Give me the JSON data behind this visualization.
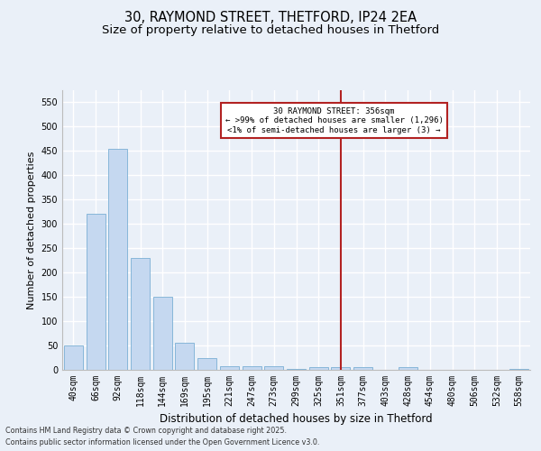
{
  "title1": "30, RAYMOND STREET, THETFORD, IP24 2EA",
  "title2": "Size of property relative to detached houses in Thetford",
  "xlabel": "Distribution of detached houses by size in Thetford",
  "ylabel": "Number of detached properties",
  "categories": [
    "40sqm",
    "66sqm",
    "92sqm",
    "118sqm",
    "144sqm",
    "169sqm",
    "195sqm",
    "221sqm",
    "247sqm",
    "273sqm",
    "299sqm",
    "325sqm",
    "351sqm",
    "377sqm",
    "403sqm",
    "428sqm",
    "454sqm",
    "480sqm",
    "506sqm",
    "532sqm",
    "558sqm"
  ],
  "values": [
    50,
    320,
    455,
    230,
    150,
    55,
    25,
    8,
    8,
    8,
    2,
    5,
    5,
    5,
    0,
    5,
    0,
    0,
    0,
    0,
    2
  ],
  "bar_color": "#c5d8f0",
  "bar_edge_color": "#7aafd4",
  "vline_x_index": 12,
  "vline_color": "#b22222",
  "annotation_title": "30 RAYMOND STREET: 356sqm",
  "annotation_line1": "← >99% of detached houses are smaller (1,296)",
  "annotation_line2": "<1% of semi-detached houses are larger (3) →",
  "annotation_box_color": "#ffffff",
  "annotation_box_edge": "#b22222",
  "footer1": "Contains HM Land Registry data © Crown copyright and database right 2025.",
  "footer2": "Contains public sector information licensed under the Open Government Licence v3.0.",
  "background_color": "#eaf0f8",
  "ylim": [
    0,
    575
  ],
  "yticks": [
    0,
    50,
    100,
    150,
    200,
    250,
    300,
    350,
    400,
    450,
    500,
    550
  ],
  "title_fontsize": 10.5,
  "subtitle_fontsize": 9.5,
  "xlabel_fontsize": 8.5,
  "ylabel_fontsize": 8,
  "tick_fontsize": 7,
  "footer_fontsize": 5.8,
  "bar_width": 0.85
}
